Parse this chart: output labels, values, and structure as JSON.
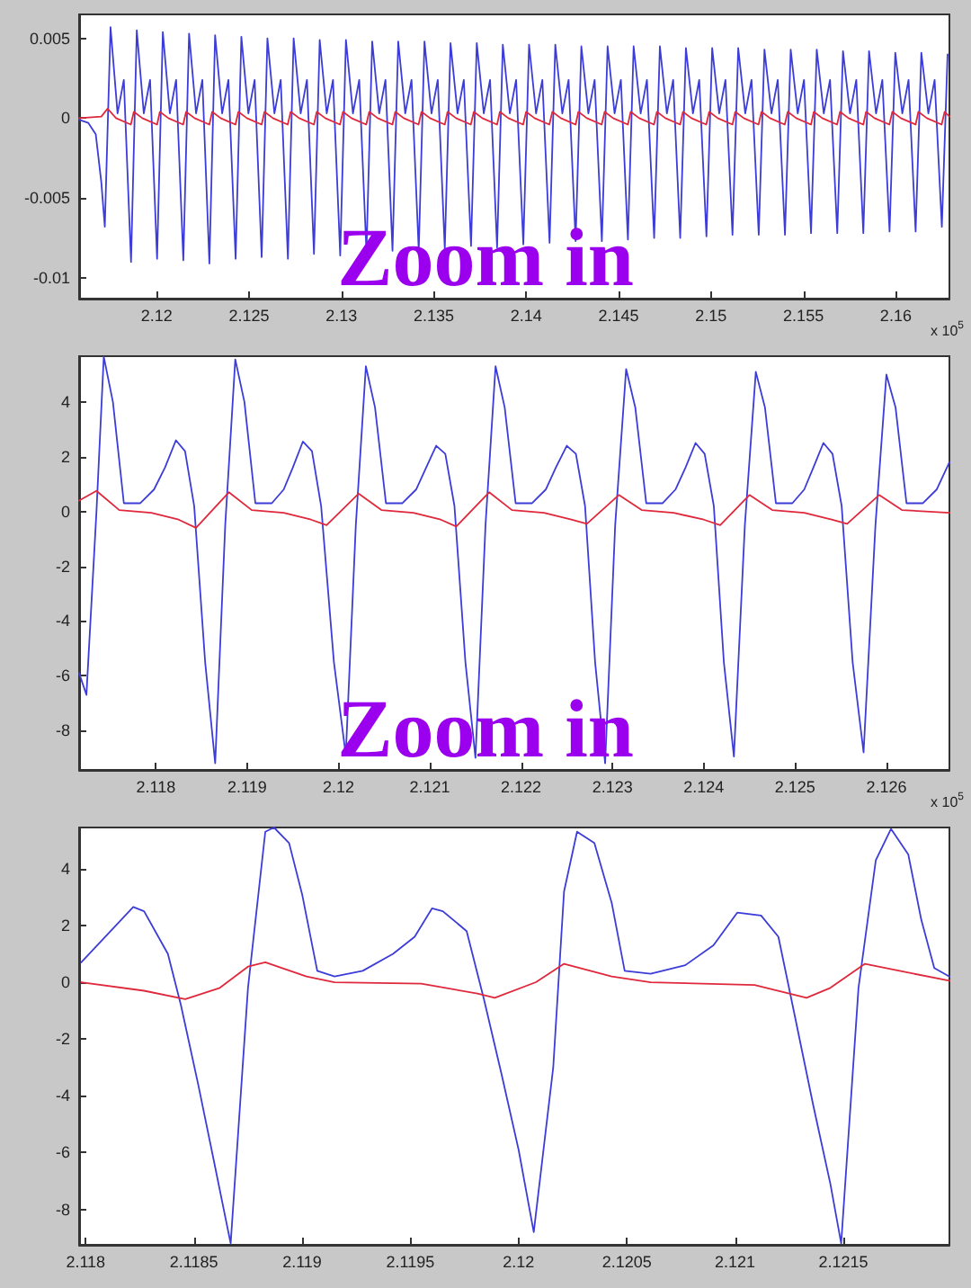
{
  "chart_data": [
    {
      "type": "line",
      "xlim": [
        2.1158,
        2.1629
      ],
      "ylim": [
        -0.0113,
        0.0065
      ],
      "xticks": [
        2.12,
        2.125,
        2.13,
        2.135,
        2.14,
        2.145,
        2.15,
        2.155,
        2.16
      ],
      "yticks": [
        -0.01,
        -0.005,
        0,
        0.005
      ],
      "annotations": [
        "Zoom in",
        "x 10$^{5}$"
      ],
      "series": [
        {
          "color": "#3c3cd8",
          "x": [
            2.1158,
            2.1163,
            2.1167,
            2.117,
            2.11719,
            2.1175,
            2.11788,
            2.11822,
            2.11861,
            2.11892,
            2.1193,
            2.11964,
            2.12002,
            2.12033,
            2.12071,
            2.12105,
            2.12144,
            2.12175,
            2.12213,
            2.12247,
            2.12285,
            2.12316,
            2.12354,
            2.12388,
            2.12427,
            2.12458,
            2.12496,
            2.1253,
            2.12568,
            2.12599,
            2.12637,
            2.12671,
            2.1271,
            2.12741,
            2.12779,
            2.12813,
            2.12851,
            2.12882,
            2.1292,
            2.12954,
            2.12993,
            2.13024,
            2.13062,
            2.13096,
            2.13135,
            2.13166,
            2.13204,
            2.13238,
            2.13276,
            2.13307,
            2.13345,
            2.13379,
            2.13418,
            2.13449,
            2.13487,
            2.13521,
            2.13559,
            2.1359,
            2.13628,
            2.13662,
            2.13701,
            2.13732,
            2.1377,
            2.13804,
            2.13842,
            2.13873,
            2.13911,
            2.13945,
            2.13984,
            2.14015,
            2.14053,
            2.14087,
            2.14126,
            2.14157,
            2.14195,
            2.14229,
            2.14267,
            2.14298,
            2.14336,
            2.1437,
            2.14409,
            2.1444,
            2.14478,
            2.14512,
            2.1455,
            2.14581,
            2.14619,
            2.14653,
            2.14692,
            2.14723,
            2.14761,
            2.14795,
            2.14833,
            2.14864,
            2.14902,
            2.14936,
            2.14975,
            2.15006,
            2.15044,
            2.15078,
            2.15116,
            2.15147,
            2.15185,
            2.15219,
            2.15258,
            2.15289,
            2.15327,
            2.15361,
            2.154,
            2.15431,
            2.15469,
            2.15503,
            2.15541,
            2.15572,
            2.1561,
            2.15644,
            2.15683,
            2.15714,
            2.15752,
            2.15786,
            2.15824,
            2.15855,
            2.15893,
            2.15927,
            2.15966,
            2.15997,
            2.16035,
            2.16069,
            2.16107,
            2.16138,
            2.16176,
            2.1621,
            2.16249,
            2.1628
          ],
          "values": [
            -0.0001,
            -0.0003,
            -0.001,
            -0.004,
            -0.0068,
            0.0057,
            0.0003,
            0.0024,
            -0.009,
            0.0055,
            0.0003,
            0.0024,
            -0.0088,
            0.0054,
            0.0003,
            0.0024,
            -0.0089,
            0.0053,
            0.0003,
            0.0024,
            -0.0091,
            0.0052,
            0.0003,
            0.0024,
            -0.0088,
            0.0051,
            0.0003,
            0.0024,
            -0.0087,
            0.005,
            0.0003,
            0.0024,
            -0.0088,
            0.005,
            0.0003,
            0.0024,
            -0.0085,
            0.0049,
            0.0003,
            0.0024,
            -0.0086,
            0.0049,
            0.0003,
            0.0024,
            -0.0084,
            0.0048,
            0.0003,
            0.0024,
            -0.0083,
            0.0048,
            0.0003,
            0.0024,
            -0.0083,
            0.0048,
            0.0003,
            0.0024,
            -0.0082,
            0.0047,
            0.0003,
            0.0024,
            -0.008,
            0.0047,
            0.0003,
            0.0024,
            -0.0081,
            0.0046,
            0.0003,
            0.0024,
            -0.0079,
            0.0046,
            0.0003,
            0.0024,
            -0.0078,
            0.0046,
            0.0003,
            0.0024,
            -0.0077,
            0.0045,
            0.0003,
            0.0024,
            -0.0077,
            0.0045,
            0.0003,
            0.0024,
            -0.0076,
            0.0045,
            0.0003,
            0.0024,
            -0.0075,
            0.0045,
            0.0003,
            0.0024,
            -0.0075,
            0.0044,
            0.0003,
            0.0024,
            -0.0074,
            0.0044,
            0.0003,
            0.0024,
            -0.0073,
            0.0044,
            0.0003,
            0.0024,
            -0.0073,
            0.0043,
            0.0003,
            0.0024,
            -0.0073,
            0.0043,
            0.0003,
            0.0024,
            -0.0072,
            0.0043,
            0.0003,
            0.0024,
            -0.0072,
            0.0042,
            0.0003,
            0.0024,
            -0.0072,
            0.0042,
            0.0003,
            0.0024,
            -0.0071,
            0.0041,
            0.0003,
            0.0024,
            -0.0071,
            0.0041,
            0.0003,
            0.0024,
            -0.0068,
            0.004
          ]
        },
        {
          "color": "#e0283c",
          "x": [
            2.1158,
            2.117,
            2.11734,
            2.1178,
            2.1186,
            2.11876,
            2.11922,
            2.12002,
            2.12017,
            2.12063,
            2.12143,
            2.12159,
            2.12205,
            2.12285,
            2.123,
            2.12346,
            2.12426,
            2.12442,
            2.12488,
            2.12568,
            2.12583,
            2.12629,
            2.12709,
            2.12725,
            2.12771,
            2.12851,
            2.12866,
            2.12912,
            2.12992,
            2.13008,
            2.13054,
            2.13134,
            2.1315,
            2.13196,
            2.13276,
            2.13291,
            2.13337,
            2.13417,
            2.13433,
            2.13479,
            2.13559,
            2.13574,
            2.1362,
            2.137,
            2.13716,
            2.13762,
            2.13842,
            2.13857,
            2.13903,
            2.13983,
            2.13999,
            2.14045,
            2.14125,
            2.14141,
            2.14187,
            2.14267,
            2.14282,
            2.14328,
            2.14408,
            2.14424,
            2.1447,
            2.1455,
            2.14565,
            2.14611,
            2.14691,
            2.14707,
            2.14753,
            2.14833,
            2.14848,
            2.14894,
            2.14974,
            2.1499,
            2.15036,
            2.15116,
            2.15131,
            2.15177,
            2.15257,
            2.15273,
            2.15319,
            2.15399,
            2.15415,
            2.15461,
            2.15541,
            2.15556,
            2.15602,
            2.15682,
            2.15698,
            2.15744,
            2.15824,
            2.15839,
            2.15885,
            2.15965,
            2.15981,
            2.16027,
            2.16107,
            2.16122,
            2.16168,
            2.16248,
            2.16264,
            2.1629
          ],
          "values": [
            0,
            0.0001,
            0.0006,
            0,
            -0.0004,
            0.0004,
            0,
            -0.0004,
            0.0004,
            0,
            -0.0004,
            0.0004,
            0,
            -0.0004,
            0.0004,
            0,
            -0.0004,
            0.0004,
            0,
            -0.0004,
            0.0004,
            0,
            -0.0004,
            0.0004,
            0,
            -0.0004,
            0.0004,
            0,
            -0.0004,
            0.0004,
            0,
            -0.0004,
            0.0004,
            0,
            -0.0004,
            0.0004,
            0,
            -0.0004,
            0.0004,
            0,
            -0.0004,
            0.0004,
            0,
            -0.0004,
            0.0004,
            0,
            -0.0004,
            0.0004,
            0,
            -0.0004,
            0.0004,
            0,
            -0.0004,
            0.0004,
            0,
            -0.0004,
            0.0004,
            0,
            -0.0004,
            0.0004,
            0,
            -0.0004,
            0.0004,
            0,
            -0.0004,
            0.0004,
            0,
            -0.0004,
            0.0004,
            0,
            -0.0004,
            0.0004,
            0,
            -0.0004,
            0.0004,
            0,
            -0.0004,
            0.0004,
            0,
            -0.0004,
            0.0004,
            0,
            -0.0004,
            0.0004,
            0,
            -0.0004,
            0.0004,
            0,
            -0.0004,
            0.0004,
            0,
            -0.0004,
            0.0004,
            0,
            -0.0004,
            0.0004,
            0,
            -0.0004,
            0.0004,
            0.0001
          ]
        }
      ]
    },
    {
      "type": "line",
      "xlim": [
        2.11716,
        2.12669
      ],
      "ylim": [
        -9.44,
        5.67
      ],
      "xticks": [
        2.118,
        2.119,
        2.12,
        2.121,
        2.122,
        2.123,
        2.124,
        2.125,
        2.126
      ],
      "yticks": [
        -8,
        -6,
        -4,
        -2,
        0,
        2,
        4
      ],
      "annotations": [
        "Zoom in",
        "x 10$^{5}$"
      ],
      "series": [
        {
          "color": "#3c3cd8",
          "x": [
            2.11716,
            2.11724,
            2.11735,
            2.11743,
            2.11753,
            2.11765,
            2.11783,
            2.11798,
            2.1181,
            2.11822,
            2.11832,
            2.11842,
            2.11854,
            2.11865,
            2.11876,
            2.11887,
            2.11897,
            2.11909,
            2.11927,
            2.1194,
            2.1195,
            2.11961,
            2.11971,
            2.11981,
            2.11995,
            2.12008,
            2.12019,
            2.1203,
            2.1204,
            2.12052,
            2.1207,
            2.12085,
            2.12096,
            2.12107,
            2.12117,
            2.12127,
            2.12139,
            2.1215,
            2.12161,
            2.12172,
            2.12182,
            2.12194,
            2.12212,
            2.12227,
            2.12238,
            2.1225,
            2.1226,
            2.1227,
            2.12281,
            2.12292,
            2.12303,
            2.12315,
            2.12325,
            2.12337,
            2.12355,
            2.12369,
            2.1238,
            2.12391,
            2.12401,
            2.12411,
            2.12422,
            2.12433,
            2.12445,
            2.12457,
            2.12467,
            2.12479,
            2.12497,
            2.1251,
            2.1252,
            2.12531,
            2.12541,
            2.12551,
            2.12563,
            2.12575,
            2.12588,
            2.126,
            2.1261,
            2.12622,
            2.1264,
            2.12655,
            2.12669
          ],
          "values": [
            -5.9,
            -6.7,
            0,
            5.65,
            4.0,
            0.3,
            0.3,
            0.8,
            1.6,
            2.6,
            2.2,
            0.2,
            -5.5,
            -9.2,
            -0.5,
            5.55,
            4.0,
            0.3,
            0.3,
            0.8,
            1.6,
            2.55,
            2.2,
            0.2,
            -5.5,
            -8.9,
            -0.5,
            5.3,
            3.8,
            0.3,
            0.3,
            0.8,
            1.6,
            2.4,
            2.1,
            0.2,
            -5.5,
            -9.0,
            -0.5,
            5.3,
            3.8,
            0.3,
            0.3,
            0.8,
            1.6,
            2.4,
            2.1,
            0.2,
            -5.5,
            -9.2,
            -0.5,
            5.2,
            3.8,
            0.3,
            0.3,
            0.8,
            1.6,
            2.5,
            2.1,
            0.2,
            -5.5,
            -8.95,
            -0.5,
            5.1,
            3.8,
            0.3,
            0.3,
            0.8,
            1.6,
            2.5,
            2.1,
            0.2,
            -5.5,
            -8.8,
            -0.5,
            5.0,
            3.8,
            0.3,
            0.3,
            0.8,
            1.8
          ]
        },
        {
          "color": "#e0283c",
          "x": [
            2.11716,
            2.11735,
            2.1176,
            2.11795,
            2.11825,
            2.11844,
            2.1188,
            2.11905,
            2.1194,
            2.1197,
            2.11987,
            2.12022,
            2.12047,
            2.12082,
            2.12112,
            2.12129,
            2.12165,
            2.1219,
            2.12225,
            2.12255,
            2.12272,
            2.12307,
            2.12332,
            2.12367,
            2.124,
            2.12418,
            2.1245,
            2.12475,
            2.1251,
            2.1254,
            2.12557,
            2.12592,
            2.12617,
            2.12669
          ],
          "values": [
            0.4,
            0.75,
            0.05,
            -0.05,
            -0.3,
            -0.6,
            0.7,
            0.05,
            -0.05,
            -0.3,
            -0.5,
            0.65,
            0.05,
            -0.05,
            -0.3,
            -0.55,
            0.7,
            0.05,
            -0.05,
            -0.3,
            -0.45,
            0.6,
            0.05,
            -0.05,
            -0.3,
            -0.5,
            0.6,
            0.05,
            -0.05,
            -0.3,
            -0.45,
            0.6,
            0.05,
            -0.05
          ]
        }
      ]
    },
    {
      "type": "line",
      "xlim": [
        2.11797,
        2.12199
      ],
      "ylim": [
        -9.25,
        5.45
      ],
      "xticks": [
        2.118,
        2.1185,
        2.119,
        2.1195,
        2.12,
        2.1205,
        2.121,
        2.1215
      ],
      "yticks": [
        -8,
        -6,
        -4,
        -2,
        0,
        2,
        4
      ],
      "series": [
        {
          "color": "#3c3cd8",
          "x": [
            2.11798,
            2.11822,
            2.11827,
            2.11838,
            2.11844,
            2.11852,
            2.11859,
            2.11867,
            2.11875,
            2.11883,
            2.11887,
            2.11894,
            2.119,
            2.11907,
            2.11915,
            2.11928,
            2.11942,
            2.11952,
            2.1196,
            2.11965,
            2.11976,
            2.11984,
            2.11992,
            2.12,
            2.12007,
            2.12016,
            2.12021,
            2.12027,
            2.12035,
            2.12043,
            2.12049,
            2.12061,
            2.12077,
            2.1209,
            2.12101,
            2.12112,
            2.1212,
            2.12126,
            2.12136,
            2.12144,
            2.12149,
            2.12157,
            2.12165,
            2.12172,
            2.1218,
            2.12186,
            2.12192,
            2.12199
          ],
          "values": [
            0.7,
            2.65,
            2.5,
            1.0,
            -0.8,
            -3.6,
            -6.2,
            -9.2,
            -0.2,
            5.3,
            5.45,
            4.9,
            3.1,
            0.4,
            0.2,
            0.4,
            1.0,
            1.6,
            2.6,
            2.5,
            1.8,
            -0.6,
            -3.2,
            -5.9,
            -8.8,
            -3.0,
            3.2,
            5.3,
            4.9,
            2.8,
            0.4,
            0.3,
            0.6,
            1.3,
            2.45,
            2.35,
            1.6,
            -0.6,
            -4.3,
            -7.1,
            -9.2,
            -0.2,
            4.3,
            5.4,
            4.5,
            2.2,
            0.5,
            0.2
          ]
        },
        {
          "color": "#e0283c",
          "x": [
            2.11798,
            2.11827,
            2.11846,
            2.11862,
            2.11875,
            2.11883,
            2.11902,
            2.11915,
            2.11955,
            2.11981,
            2.11989,
            2.12008,
            2.12021,
            2.12043,
            2.12061,
            2.12109,
            2.12133,
            2.12144,
            2.1216,
            2.12176,
            2.12199
          ],
          "values": [
            0,
            -0.3,
            -0.6,
            -0.2,
            0.55,
            0.7,
            0.2,
            0,
            -0.05,
            -0.4,
            -0.55,
            0,
            0.65,
            0.2,
            0,
            -0.1,
            -0.55,
            -0.2,
            0.65,
            0.4,
            0.05
          ]
        }
      ]
    }
  ]
}
